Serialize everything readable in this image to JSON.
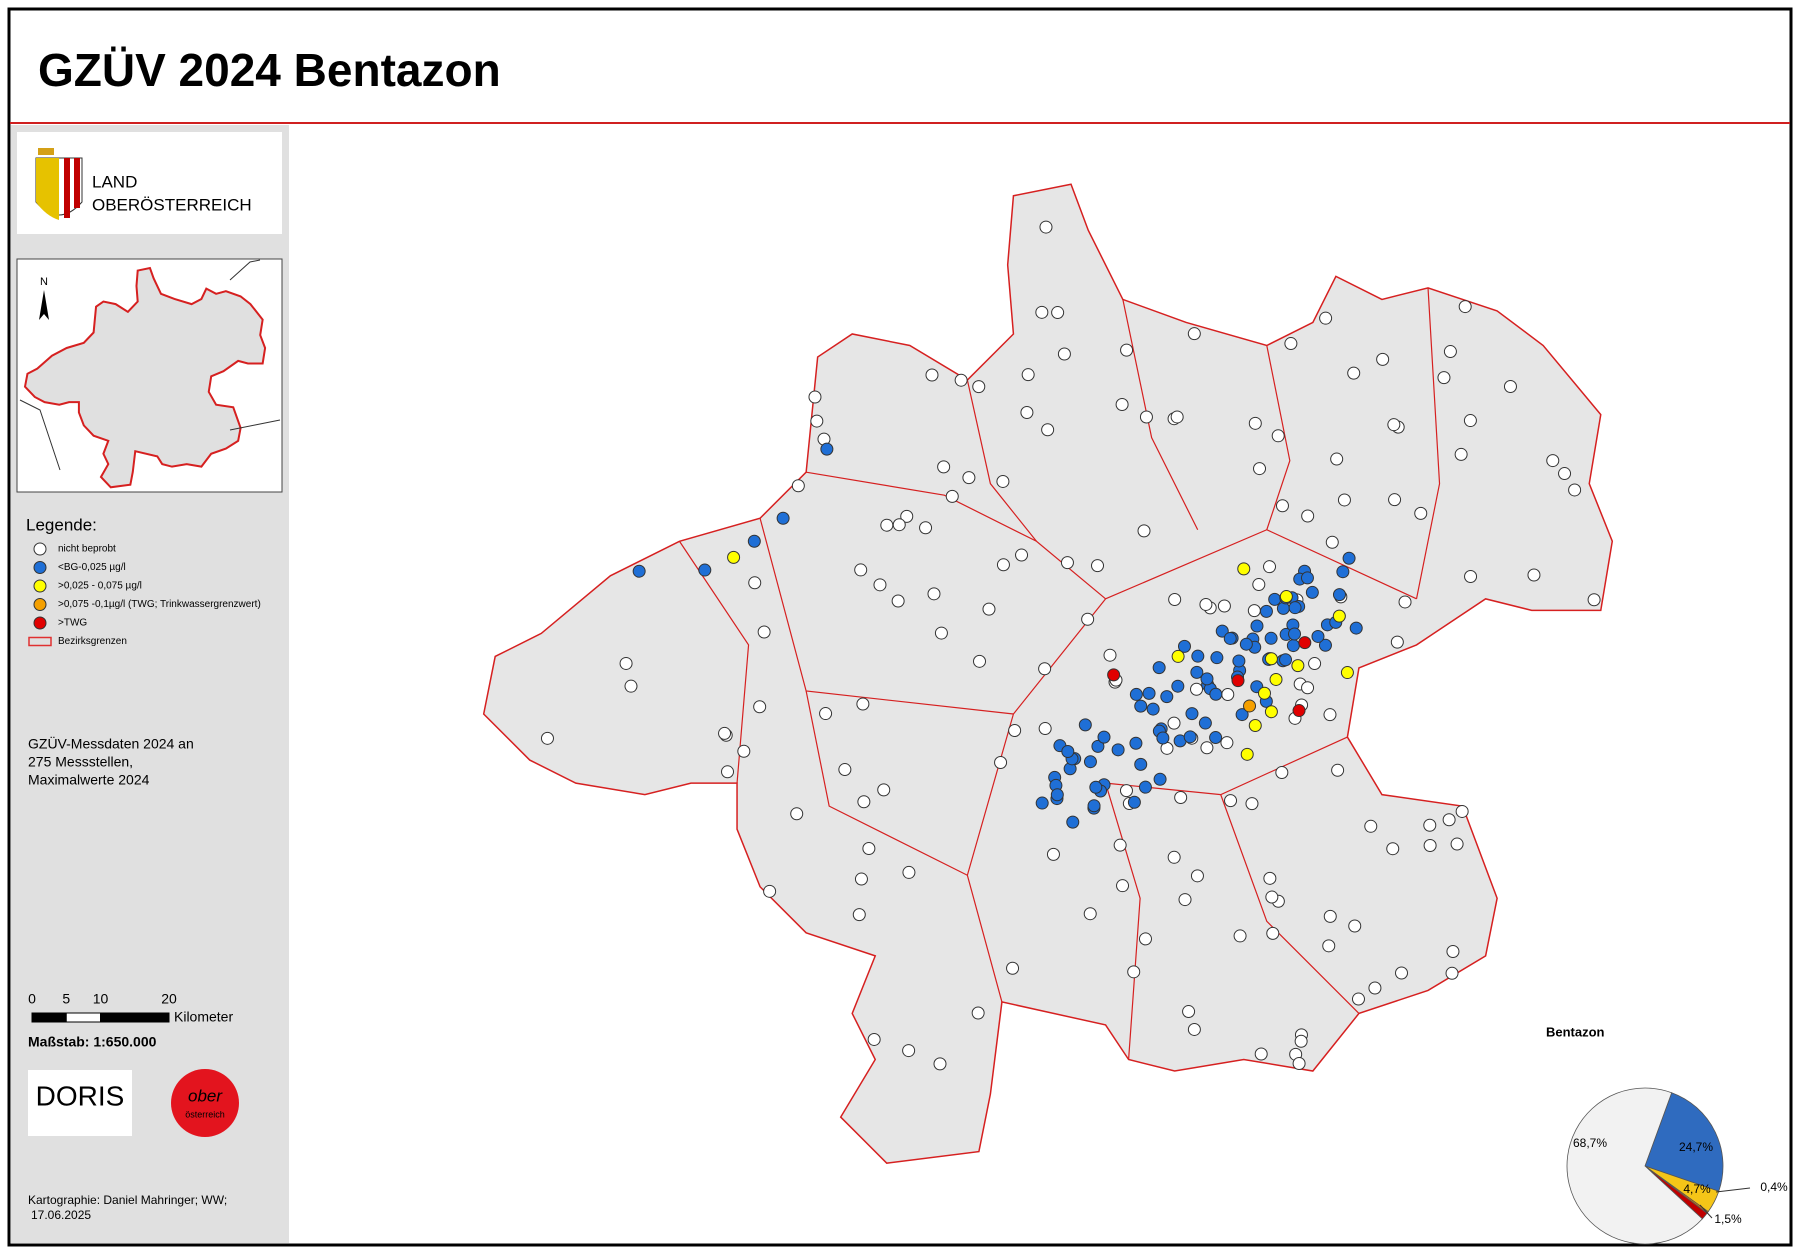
{
  "header": {
    "title": "GZÜV 2024 Bentazon"
  },
  "logo": {
    "line1": "LAND",
    "line2": "OBERÖSTERREICH"
  },
  "inset": {
    "north": "N"
  },
  "legend": {
    "title": "Legende:",
    "items": [
      {
        "label": "nicht beprobt",
        "color": "#ffffff"
      },
      {
        "label": "<BG-0,025 µg/l",
        "color": "#1f6fd6"
      },
      {
        "label": ">0,025 - 0,075 µg/l",
        "color": "#ffff00"
      },
      {
        "label": ">0,075 -0,1µg/l (TWG; Trinkwassergrenzwert)",
        "color": "#f5a000"
      },
      {
        "label": ">TWG",
        "color": "#e00000"
      },
      {
        "label": "Bezirksgrenzen",
        "color": "#e03030"
      }
    ]
  },
  "note": [
    "GZÜV-Messdaten 2024 an",
    "275 Messstellen,",
    "Maximalwerte 2024"
  ],
  "scale": {
    "ticks": [
      0,
      5,
      10,
      20
    ],
    "unit": "Kilometer",
    "ratio": "Maßstab: 1:650.000"
  },
  "logos": {
    "doris": "DORIS",
    "ober": "ober",
    "oesterreich": "österreich"
  },
  "credits": [
    "Kartographie: Daniel Mahringer; WW;",
    "17.06.2025"
  ],
  "chart_data": {
    "type": "pie",
    "title": "Bentazon",
    "values": [
      68.7,
      24.7,
      4.7,
      0.4,
      1.5
    ],
    "value_labels": [
      "68,7%",
      "24,7%",
      "4,7%",
      "0,4%",
      "1,5%"
    ],
    "colors": [
      "#f2f2f2",
      "#2f6bbf",
      "#f5c518",
      "#e07b00",
      "#c00000"
    ]
  }
}
